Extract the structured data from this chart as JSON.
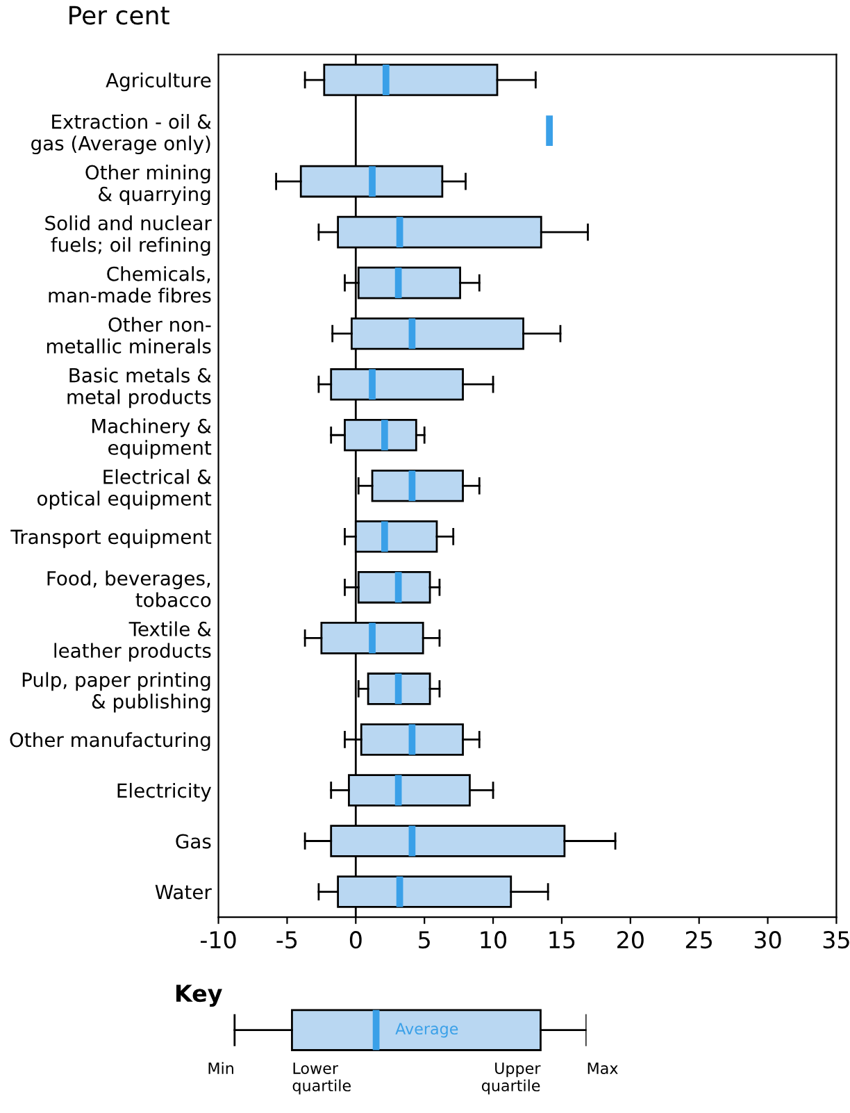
{
  "chart_data": {
    "type": "box",
    "orientation": "horizontal",
    "xlabel": "Per cent",
    "categories": [
      "Agriculture",
      "Extraction - oil &\ngas (Average only)",
      "Other mining\n& quarrying",
      "Solid and nuclear\nfuels; oil refining",
      "Chemicals,\nman-made fibres",
      "Other non-\nmetallic minerals",
      "Basic metals &\nmetal products",
      "Machinery &\nequipment",
      "Electrical &\noptical equipment",
      "Transport equipment",
      "Food, beverages,\ntobacco",
      "Textile &\nleather products",
      "Pulp, paper printing\n& publishing",
      "Other manufacturing",
      "Electricity",
      "Gas",
      "Water"
    ],
    "boxes": [
      {
        "low": -3.7,
        "q1": -2.3,
        "q3": 10.3,
        "high": 13.1,
        "mean": 2.2
      },
      {
        "low": 14.1,
        "q1": 14.1,
        "q3": 14.1,
        "high": 14.1,
        "mean": 14.1
      },
      {
        "low": -5.8,
        "q1": -4.0,
        "q3": 6.3,
        "high": 8.0,
        "mean": 1.2
      },
      {
        "low": -2.7,
        "q1": -1.3,
        "q3": 13.5,
        "high": 16.9,
        "mean": 3.2
      },
      {
        "low": -0.8,
        "q1": 0.2,
        "q3": 7.6,
        "high": 9.0,
        "mean": 3.1
      },
      {
        "low": -1.7,
        "q1": -0.3,
        "q3": 12.2,
        "high": 14.9,
        "mean": 4.1
      },
      {
        "low": -2.7,
        "q1": -1.8,
        "q3": 7.8,
        "high": 10.0,
        "mean": 1.2
      },
      {
        "low": -1.8,
        "q1": -0.8,
        "q3": 4.4,
        "high": 5.0,
        "mean": 2.1
      },
      {
        "low": 0.2,
        "q1": 1.2,
        "q3": 7.8,
        "high": 9.0,
        "mean": 4.1
      },
      {
        "low": -0.8,
        "q1": 0.0,
        "q3": 5.9,
        "high": 7.1,
        "mean": 2.1
      },
      {
        "low": -0.8,
        "q1": 0.2,
        "q3": 5.4,
        "high": 6.1,
        "mean": 3.1
      },
      {
        "low": -3.7,
        "q1": -2.5,
        "q3": 4.9,
        "high": 6.1,
        "mean": 1.2
      },
      {
        "low": 0.2,
        "q1": 0.9,
        "q3": 5.4,
        "high": 6.1,
        "mean": 3.1
      },
      {
        "low": -0.8,
        "q1": 0.4,
        "q3": 7.8,
        "high": 9.0,
        "mean": 4.1
      },
      {
        "low": -1.8,
        "q1": -0.5,
        "q3": 8.3,
        "high": 10.0,
        "mean": 3.1
      },
      {
        "low": -3.7,
        "q1": -1.8,
        "q3": 15.2,
        "high": 18.9,
        "mean": 4.1
      },
      {
        "low": -2.7,
        "q1": -1.3,
        "q3": 11.3,
        "high": 14.0,
        "mean": 3.2
      }
    ],
    "colors": [
      "#b9d7f2",
      "#3aa0e8",
      "#b9d7f2",
      "#b9d7f2",
      "#b9d7f2",
      "#b9d7f2",
      "#b9d7f2",
      "#b9d7f2",
      "#b9d7f2",
      "#b9d7f2",
      "#b9d7f2",
      "#b9d7f2",
      "#b9d7f2",
      "#b9d7f2",
      "#b9d7f2",
      "#b9d7f2",
      "#b9d7f2"
    ],
    "xlim": [
      -10,
      35
    ],
    "xticks": [
      -10,
      -5,
      0,
      5,
      10,
      15,
      20,
      25,
      30,
      35
    ],
    "ref_lines": [
      {
        "axis": "x",
        "value": 0,
        "color": "#000000"
      }
    ],
    "grid": false,
    "legend": false,
    "annotations": [
      "Key",
      "Average",
      "Min",
      "Lower\nquartile",
      "Upper\nquartile",
      "Max"
    ]
  }
}
